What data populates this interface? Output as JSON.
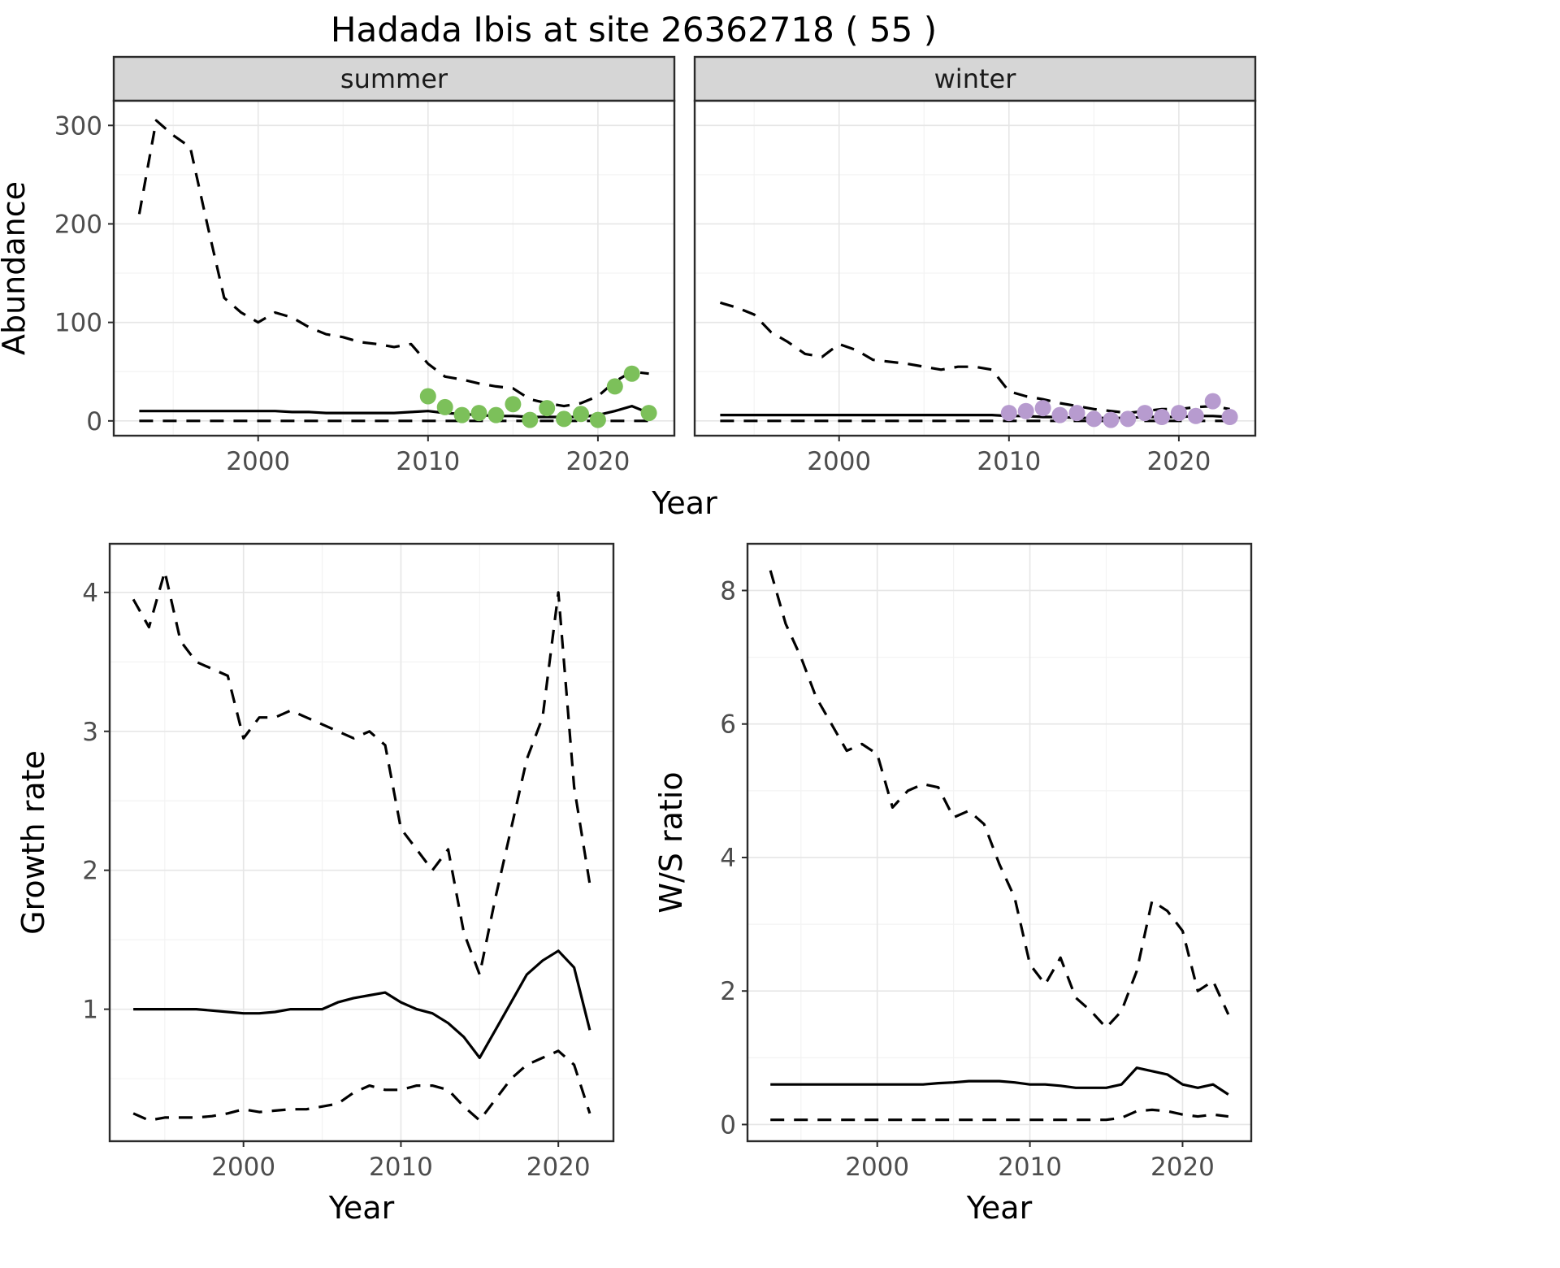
{
  "title": "Hadada Ibis at site 26362718 ( 55 )",
  "style": {
    "panel_bg": "#ffffff",
    "strip_bg": "#d6d6d6",
    "strip_text_color": "#1a1a1a",
    "grid_major": "#e6e6e6",
    "grid_minor": "#f3f3f3",
    "border": "#2b2b2b",
    "tick_text": "#4d4d4d",
    "axis_title_color": "#000000",
    "line_color": "#000000",
    "summer_point_color": "#7cc05a",
    "winter_point_color": "#b79bcf",
    "point_radius": 10
  },
  "chart_data": [
    {
      "id": "abundance_summer",
      "type": "line",
      "title": "summer",
      "xlabel": "Year",
      "ylabel": "Abundance",
      "xlim": [
        1991.5,
        2024.5
      ],
      "ylim": [
        -15,
        325
      ],
      "xticks": [
        2000,
        2010,
        2020
      ],
      "yticks": [
        0,
        100,
        200,
        300
      ],
      "xminor": [
        1995,
        2005,
        2015
      ],
      "yminor": [
        50,
        150,
        250
      ],
      "years": [
        1993,
        1994,
        1995,
        1996,
        1997,
        1998,
        1999,
        2000,
        2001,
        2002,
        2003,
        2004,
        2005,
        2006,
        2007,
        2008,
        2009,
        2010,
        2011,
        2012,
        2013,
        2014,
        2015,
        2016,
        2017,
        2018,
        2019,
        2020,
        2021,
        2022,
        2023
      ],
      "series": [
        {
          "name": "upper_ci",
          "style": "dashed",
          "values": [
            210,
            305,
            290,
            278,
            200,
            125,
            110,
            100,
            110,
            105,
            95,
            88,
            85,
            80,
            78,
            75,
            78,
            58,
            45,
            42,
            38,
            35,
            33,
            22,
            18,
            15,
            18,
            25,
            40,
            50,
            48
          ]
        },
        {
          "name": "median",
          "style": "solid",
          "values": [
            10,
            10,
            10,
            10,
            10,
            10,
            10,
            10,
            10,
            9,
            9,
            8,
            8,
            8,
            8,
            8,
            9,
            10,
            8,
            7,
            6,
            5,
            5,
            4,
            4,
            4,
            4,
            6,
            10,
            15,
            8
          ]
        },
        {
          "name": "lower_ci",
          "style": "dashed",
          "values": [
            0,
            0,
            0,
            0,
            0,
            0,
            0,
            0,
            0,
            0,
            0,
            0,
            0,
            0,
            0,
            0,
            0,
            0,
            0,
            0,
            0,
            0,
            0,
            0,
            0,
            0,
            0,
            0,
            0,
            0,
            0
          ]
        },
        {
          "name": "observed_counts",
          "style": "points",
          "color": "#7cc05a",
          "x": [
            2010,
            2011,
            2012,
            2013,
            2014,
            2015,
            2016,
            2017,
            2018,
            2019,
            2020,
            2021,
            2022,
            2023
          ],
          "values": [
            25,
            14,
            6,
            8,
            6,
            17,
            1,
            13,
            2,
            7,
            1,
            35,
            48,
            8
          ]
        }
      ]
    },
    {
      "id": "abundance_winter",
      "type": "line",
      "title": "winter",
      "xlabel": "Year",
      "ylabel": "Abundance",
      "xlim": [
        1991.5,
        2024.5
      ],
      "ylim": [
        -15,
        325
      ],
      "xticks": [
        2000,
        2010,
        2020
      ],
      "yticks": [
        0,
        100,
        200,
        300
      ],
      "xminor": [
        1995,
        2005,
        2015
      ],
      "yminor": [
        50,
        150,
        250
      ],
      "years": [
        1993,
        1994,
        1995,
        1996,
        1997,
        1998,
        1999,
        2000,
        2001,
        2002,
        2003,
        2004,
        2005,
        2006,
        2007,
        2008,
        2009,
        2010,
        2011,
        2012,
        2013,
        2014,
        2015,
        2016,
        2017,
        2018,
        2019,
        2020,
        2021,
        2022,
        2023
      ],
      "series": [
        {
          "name": "upper_ci",
          "style": "dashed",
          "values": [
            120,
            115,
            108,
            90,
            80,
            68,
            65,
            78,
            72,
            62,
            60,
            58,
            55,
            52,
            55,
            55,
            52,
            30,
            25,
            22,
            18,
            15,
            12,
            10,
            8,
            10,
            12,
            12,
            14,
            15,
            12
          ]
        },
        {
          "name": "median",
          "style": "solid",
          "values": [
            6,
            6,
            6,
            6,
            6,
            6,
            6,
            6,
            6,
            6,
            6,
            6,
            6,
            6,
            6,
            6,
            6,
            5,
            5,
            4,
            4,
            3,
            3,
            3,
            3,
            4,
            4,
            4,
            5,
            5,
            4
          ]
        },
        {
          "name": "lower_ci",
          "style": "dashed",
          "values": [
            0,
            0,
            0,
            0,
            0,
            0,
            0,
            0,
            0,
            0,
            0,
            0,
            0,
            0,
            0,
            0,
            0,
            0,
            0,
            0,
            0,
            0,
            0,
            0,
            0,
            0,
            0,
            0,
            0,
            0,
            0
          ]
        },
        {
          "name": "observed_counts",
          "style": "points",
          "color": "#b79bcf",
          "x": [
            2010,
            2011,
            2012,
            2013,
            2014,
            2015,
            2016,
            2017,
            2018,
            2019,
            2020,
            2021,
            2022,
            2023
          ],
          "values": [
            8,
            10,
            13,
            6,
            8,
            2,
            1,
            2,
            8,
            4,
            8,
            5,
            20,
            4
          ]
        }
      ]
    },
    {
      "id": "growth_rate",
      "type": "line",
      "title": "",
      "xlabel": "Year",
      "ylabel": "Growth rate",
      "xlim": [
        1991.5,
        2023.5
      ],
      "ylim": [
        0.05,
        4.35
      ],
      "xticks": [
        2000,
        2010,
        2020
      ],
      "yticks": [
        1,
        2,
        3,
        4
      ],
      "xminor": [
        1995,
        2005,
        2015
      ],
      "yminor": [
        0.5,
        1.5,
        2.5,
        3.5
      ],
      "years": [
        1993,
        1994,
        1995,
        1996,
        1997,
        1998,
        1999,
        2000,
        2001,
        2002,
        2003,
        2004,
        2005,
        2006,
        2007,
        2008,
        2009,
        2010,
        2011,
        2012,
        2013,
        2014,
        2015,
        2016,
        2017,
        2018,
        2019,
        2020,
        2021,
        2022
      ],
      "series": [
        {
          "name": "upper_ci",
          "style": "dashed",
          "values": [
            3.95,
            3.75,
            4.15,
            3.65,
            3.5,
            3.45,
            3.4,
            2.95,
            3.1,
            3.1,
            3.15,
            3.1,
            3.05,
            3.0,
            2.95,
            3.0,
            2.9,
            2.3,
            2.15,
            2.0,
            2.15,
            1.55,
            1.25,
            1.8,
            2.3,
            2.8,
            3.1,
            4.0,
            2.6,
            1.9
          ]
        },
        {
          "name": "median",
          "style": "solid",
          "values": [
            1.0,
            1.0,
            1.0,
            1.0,
            1.0,
            0.99,
            0.98,
            0.97,
            0.97,
            0.98,
            1.0,
            1.0,
            1.0,
            1.05,
            1.08,
            1.1,
            1.12,
            1.05,
            1.0,
            0.97,
            0.9,
            0.8,
            0.65,
            0.85,
            1.05,
            1.25,
            1.35,
            1.42,
            1.3,
            0.85
          ]
        },
        {
          "name": "lower_ci",
          "style": "dashed",
          "values": [
            0.25,
            0.2,
            0.22,
            0.22,
            0.22,
            0.23,
            0.25,
            0.28,
            0.26,
            0.27,
            0.28,
            0.28,
            0.3,
            0.32,
            0.4,
            0.45,
            0.42,
            0.42,
            0.45,
            0.45,
            0.42,
            0.3,
            0.2,
            0.35,
            0.5,
            0.6,
            0.65,
            0.7,
            0.6,
            0.25
          ]
        }
      ]
    },
    {
      "id": "ws_ratio",
      "type": "line",
      "title": "",
      "xlabel": "Year",
      "ylabel": "W/S ratio",
      "xlim": [
        1991.5,
        2024.5
      ],
      "ylim": [
        -0.25,
        8.7
      ],
      "xticks": [
        2000,
        2010,
        2020
      ],
      "yticks": [
        0,
        2,
        4,
        6,
        8
      ],
      "xminor": [
        1995,
        2005,
        2015
      ],
      "yminor": [
        1,
        3,
        5,
        7
      ],
      "years": [
        1993,
        1994,
        1995,
        1996,
        1997,
        1998,
        1999,
        2000,
        2001,
        2002,
        2003,
        2004,
        2005,
        2006,
        2007,
        2008,
        2009,
        2010,
        2011,
        2012,
        2013,
        2014,
        2015,
        2016,
        2017,
        2018,
        2019,
        2020,
        2021,
        2022,
        2023
      ],
      "series": [
        {
          "name": "upper_ci",
          "style": "dashed",
          "values": [
            8.3,
            7.5,
            7.0,
            6.4,
            6.0,
            5.6,
            5.7,
            5.55,
            4.75,
            5.0,
            5.1,
            5.05,
            4.6,
            4.7,
            4.5,
            3.9,
            3.4,
            2.4,
            2.1,
            2.5,
            1.9,
            1.7,
            1.45,
            1.7,
            2.3,
            3.35,
            3.2,
            2.9,
            2.0,
            2.15,
            1.65
          ]
        },
        {
          "name": "median",
          "style": "solid",
          "values": [
            0.6,
            0.6,
            0.6,
            0.6,
            0.6,
            0.6,
            0.6,
            0.6,
            0.6,
            0.6,
            0.6,
            0.62,
            0.63,
            0.65,
            0.65,
            0.65,
            0.63,
            0.6,
            0.6,
            0.58,
            0.55,
            0.55,
            0.55,
            0.6,
            0.85,
            0.8,
            0.75,
            0.6,
            0.55,
            0.6,
            0.45
          ]
        },
        {
          "name": "lower_ci",
          "style": "dashed",
          "values": [
            0.07,
            0.07,
            0.07,
            0.07,
            0.07,
            0.07,
            0.07,
            0.07,
            0.07,
            0.07,
            0.07,
            0.07,
            0.07,
            0.07,
            0.07,
            0.07,
            0.07,
            0.07,
            0.07,
            0.07,
            0.07,
            0.07,
            0.07,
            0.1,
            0.2,
            0.22,
            0.2,
            0.15,
            0.12,
            0.15,
            0.12
          ]
        }
      ]
    }
  ]
}
